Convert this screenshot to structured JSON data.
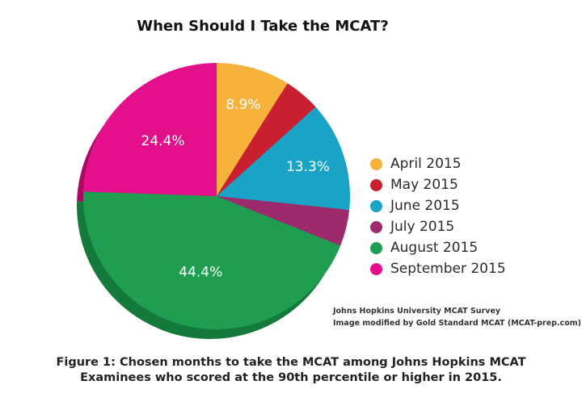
{
  "chart_data": {
    "type": "pie",
    "title": "When Should I Take the MCAT?",
    "categories": [
      "April 2015",
      "May 2015",
      "June 2015",
      "July 2015",
      "August 2015",
      "September 2015"
    ],
    "values": [
      8.9,
      4.4,
      13.3,
      4.4,
      44.4,
      24.4
    ],
    "value_labels": [
      "8.9%",
      "",
      "13.3%",
      "",
      "44.4%",
      "24.4%"
    ],
    "colors": [
      "#f7b23b",
      "#c8202f",
      "#1aa3c4",
      "#9e2a6e",
      "#1f9e52",
      "#e40f8a"
    ],
    "shadow_colors": [
      "#c98a20",
      "#8f1420",
      "#137892",
      "#6e1c4c",
      "#137a3c",
      "#a80a65"
    ],
    "start_angle_deg": 0,
    "direction": "clockwise",
    "legend_position": "right"
  },
  "legend": {
    "items": [
      "April 2015",
      "May 2015",
      "June 2015",
      "July 2015",
      "August 2015",
      "September 2015"
    ]
  },
  "source": {
    "line1": "Johns Hopkins University MCAT Survey",
    "line2": "Image modified by Gold Standard MCAT (MCAT-prep.com)"
  },
  "caption": {
    "line1": "Figure 1: Chosen months to take the MCAT among Johns Hopkins MCAT",
    "line2": "Examinees who scored at the 90th percentile or higher in 2015."
  }
}
